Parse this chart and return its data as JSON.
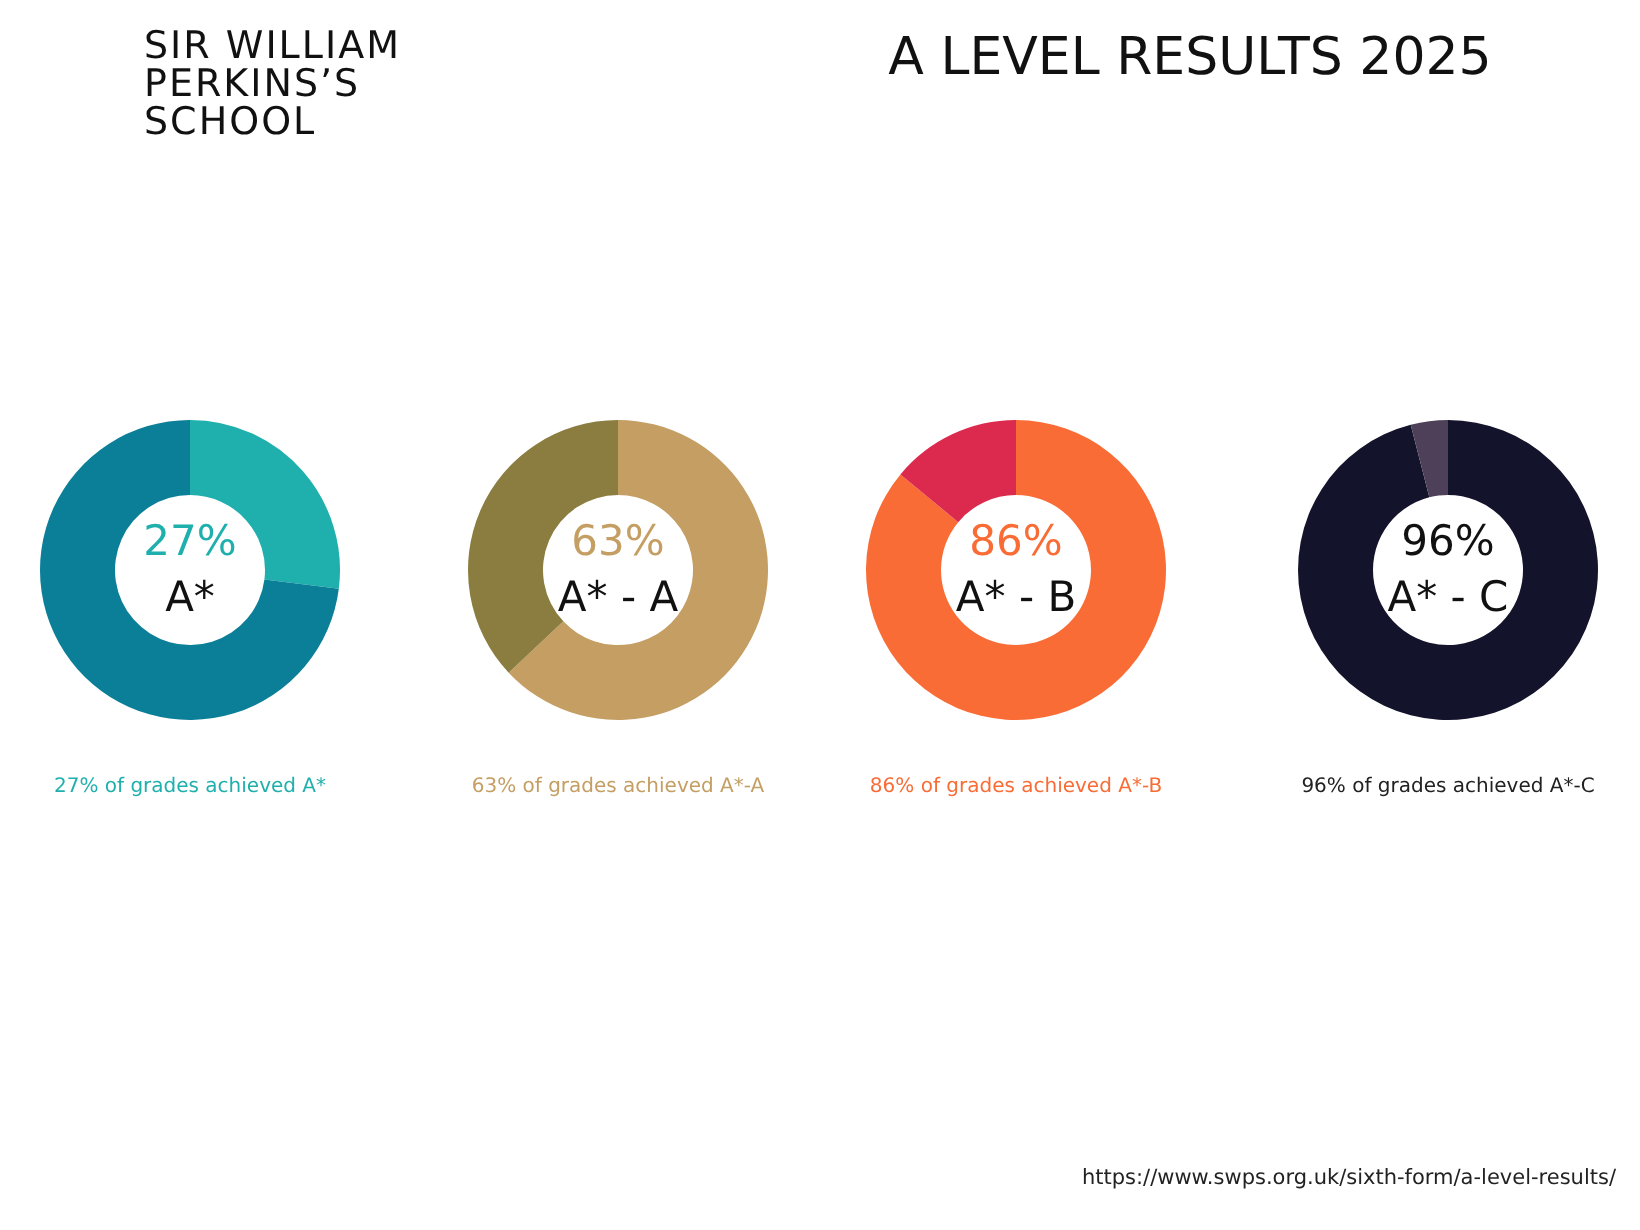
{
  "chart_data": [
    {
      "type": "donut",
      "title": "A LEVEL RESULTS 2025",
      "categories": [
        "A*",
        null
      ],
      "values": [
        27,
        73
      ],
      "colors": [
        "#1fb0ae",
        "#0b7f98"
      ],
      "value_labels": [
        "27%",
        null
      ],
      "annotations": [
        "SIR WILLIAM PERKINS’S SCHOOL",
        "27% of grades achieved A*"
      ]
    },
    {
      "type": "donut",
      "categories": [
        "A* - A",
        null
      ],
      "values": [
        63,
        37
      ],
      "colors": [
        "#c49e62",
        "#8a7d3f"
      ],
      "value_labels": [
        "63%",
        null
      ],
      "annotations": [
        "63% of grades achieved A*-A"
      ]
    },
    {
      "type": "donut",
      "categories": [
        "A* - B",
        null
      ],
      "values": [
        86,
        14
      ],
      "colors": [
        "#f96c35",
        "#dc2a4e"
      ],
      "value_labels": [
        "86%",
        null
      ],
      "annotations": [
        "86% of grades achieved A*-B"
      ]
    },
    {
      "type": "donut",
      "categories": [
        "A* - C",
        null
      ],
      "values": [
        96,
        4
      ],
      "colors": [
        "#13132b",
        "#4e4058"
      ],
      "value_labels": [
        "96%",
        null
      ],
      "annotations": [
        "96% of grades achieved A*-C",
        "https://www.swps.org.uk/sixth-form/a-level-results/"
      ]
    }
  ]
}
